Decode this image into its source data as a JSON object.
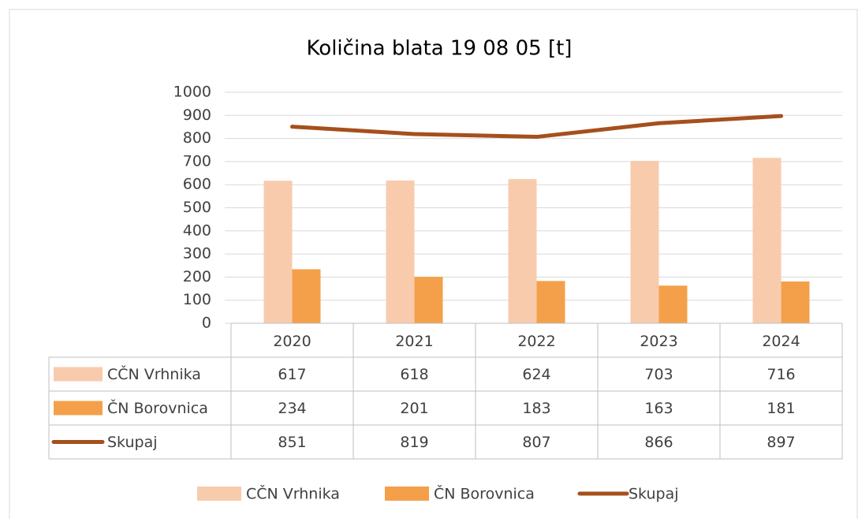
{
  "chart_data": {
    "type": "bar-line",
    "title": "Količina  blata 19 08 05 [t]",
    "categories": [
      "2020",
      "2021",
      "2022",
      "2023",
      "2024"
    ],
    "series": [
      {
        "name": "CČN Vrhnika",
        "type": "bar",
        "color": "#f8cbad",
        "values": [
          617,
          618,
          624,
          703,
          716
        ]
      },
      {
        "name": "ČN Borovnica",
        "type": "bar",
        "color": "#f4a04a",
        "values": [
          234,
          201,
          183,
          163,
          181
        ]
      },
      {
        "name": "Skupaj",
        "type": "line",
        "color": "#a5501c",
        "values": [
          851,
          819,
          807,
          866,
          897
        ]
      }
    ],
    "ylim": [
      0,
      1000
    ],
    "yticks": [
      0,
      100,
      200,
      300,
      400,
      500,
      600,
      700,
      800,
      900,
      1000
    ],
    "grid": true,
    "legend": "bottom",
    "data_table": true
  }
}
